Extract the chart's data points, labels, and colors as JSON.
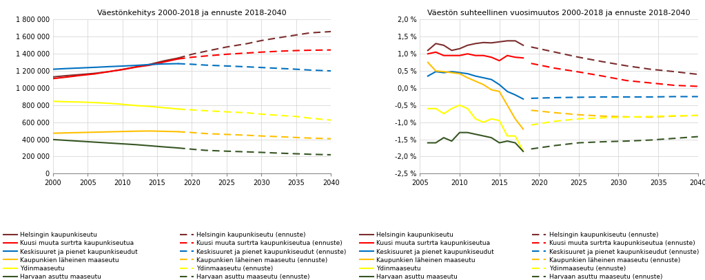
{
  "title1": "Väestönkehitys 2000-2018 ja ennuste 2018-2040",
  "title2": "Väestön suhteellinen vuosimuutos 2000-2018 ja ennuste 2018-2040",
  "colors": {
    "helsinki": "#7B2D2D",
    "kuusi": "#FF0000",
    "keski": "#0070C0",
    "kaupunkien": "#FFC000",
    "ydin": "#FFFF00",
    "harvaan": "#375623"
  },
  "legend_labels": [
    "Helsingin kaupunkiseutu",
    "Kuusi muuta surtrta kaupunkiseutua",
    "Keskisuuret ja pienet kaupunkiseudut",
    "Kaupunkien läheinen maaseutu",
    "Ydinmaaseutu",
    "Harvaan asuttu maaseutu"
  ],
  "legend_labels_ennuste": [
    "Helsingin kaupunkiseutu (ennuste)",
    "Kuusi muuta surtrta kaupunkiseutua (ennuste)",
    "Keskisuuret ja pienet kaupunkiseudut (ennuste)",
    "Kaupunkien läheinen maaseutu (ennuste)",
    "Ydinmaaseutu (ennuste)",
    "Harvaan asuttu maaseutu (ennuste)"
  ],
  "chart1": {
    "xlim": [
      2000,
      2040
    ],
    "ylim": [
      0,
      1800000
    ],
    "yticks": [
      0,
      200000,
      400000,
      600000,
      800000,
      1000000,
      1200000,
      1400000,
      1600000,
      1800000
    ],
    "xticks": [
      2000,
      2005,
      2010,
      2015,
      2020,
      2025,
      2030,
      2035,
      2040
    ],
    "series": {
      "helsinki_hist": {
        "x": [
          2000,
          2002,
          2004,
          2006,
          2008,
          2010,
          2012,
          2014,
          2016,
          2018
        ],
        "y": [
          1130000,
          1145000,
          1158000,
          1172000,
          1190000,
          1218000,
          1248000,
          1278000,
          1318000,
          1350000
        ]
      },
      "helsinki_fore": {
        "x": [
          2018,
          2020,
          2022,
          2025,
          2028,
          2030,
          2033,
          2035,
          2037,
          2040
        ],
        "y": [
          1350000,
          1395000,
          1430000,
          1480000,
          1520000,
          1555000,
          1595000,
          1620000,
          1645000,
          1660000
        ]
      },
      "kuusi_hist": {
        "x": [
          2000,
          2002,
          2004,
          2006,
          2008,
          2010,
          2012,
          2014,
          2016,
          2018
        ],
        "y": [
          1110000,
          1128000,
          1148000,
          1165000,
          1192000,
          1215000,
          1245000,
          1268000,
          1305000,
          1340000
        ]
      },
      "kuusi_fore": {
        "x": [
          2018,
          2020,
          2022,
          2025,
          2028,
          2030,
          2033,
          2035,
          2037,
          2040
        ],
        "y": [
          1340000,
          1360000,
          1375000,
          1395000,
          1410000,
          1420000,
          1432000,
          1438000,
          1442000,
          1445000
        ]
      },
      "keski_hist": {
        "x": [
          2000,
          2002,
          2004,
          2006,
          2008,
          2010,
          2012,
          2014,
          2016,
          2018
        ],
        "y": [
          1220000,
          1228000,
          1235000,
          1242000,
          1250000,
          1257000,
          1265000,
          1275000,
          1282000,
          1285000
        ]
      },
      "keski_fore": {
        "x": [
          2018,
          2020,
          2022,
          2025,
          2028,
          2030,
          2033,
          2035,
          2037,
          2040
        ],
        "y": [
          1285000,
          1278000,
          1268000,
          1258000,
          1248000,
          1240000,
          1228000,
          1220000,
          1210000,
          1200000
        ]
      },
      "kaupunkien_hist": {
        "x": [
          2000,
          2002,
          2004,
          2006,
          2008,
          2010,
          2012,
          2014,
          2016,
          2018
        ],
        "y": [
          472000,
          476000,
          480000,
          484000,
          488000,
          492000,
          496000,
          498000,
          494000,
          490000
        ]
      },
      "kaupunkien_fore": {
        "x": [
          2018,
          2020,
          2022,
          2025,
          2028,
          2030,
          2033,
          2035,
          2037,
          2040
        ],
        "y": [
          490000,
          480000,
          468000,
          458000,
          448000,
          440000,
          430000,
          422000,
          415000,
          408000
        ]
      },
      "ydin_hist": {
        "x": [
          2000,
          2002,
          2004,
          2006,
          2008,
          2010,
          2012,
          2014,
          2016,
          2018
        ],
        "y": [
          845000,
          840000,
          836000,
          830000,
          822000,
          810000,
          795000,
          785000,
          770000,
          755000
        ]
      },
      "ydin_fore": {
        "x": [
          2018,
          2020,
          2022,
          2025,
          2028,
          2030,
          2033,
          2035,
          2037,
          2040
        ],
        "y": [
          755000,
          745000,
          735000,
          722000,
          710000,
          695000,
          678000,
          668000,
          648000,
          625000
        ]
      },
      "harvaan_hist": {
        "x": [
          2000,
          2002,
          2004,
          2006,
          2008,
          2010,
          2012,
          2014,
          2016,
          2018
        ],
        "y": [
          398000,
          388000,
          378000,
          368000,
          358000,
          348000,
          338000,
          325000,
          312000,
          300000
        ]
      },
      "harvaan_fore": {
        "x": [
          2018,
          2020,
          2022,
          2025,
          2028,
          2030,
          2033,
          2035,
          2037,
          2040
        ],
        "y": [
          300000,
          285000,
          272000,
          262000,
          254000,
          248000,
          238000,
          232000,
          226000,
          220000
        ]
      }
    }
  },
  "chart2": {
    "xlim": [
      2005,
      2040
    ],
    "ylim": [
      -0.025,
      0.02
    ],
    "yticks": [
      -0.025,
      -0.02,
      -0.015,
      -0.01,
      -0.005,
      0.0,
      0.005,
      0.01,
      0.015,
      0.02
    ],
    "xticks": [
      2005,
      2010,
      2015,
      2020,
      2025,
      2030,
      2035,
      2040
    ],
    "series": {
      "helsinki_hist": {
        "x": [
          2006,
          2007,
          2008,
          2009,
          2010,
          2011,
          2012,
          2013,
          2014,
          2015,
          2016,
          2017,
          2018
        ],
        "y": [
          0.011,
          0.013,
          0.0125,
          0.011,
          0.0115,
          0.0125,
          0.013,
          0.0133,
          0.0132,
          0.0135,
          0.0138,
          0.0138,
          0.0125
        ]
      },
      "helsinki_fore": {
        "x": [
          2019,
          2022,
          2025,
          2028,
          2031,
          2034,
          2037,
          2040
        ],
        "y": [
          0.012,
          0.0105,
          0.009,
          0.0077,
          0.0065,
          0.0055,
          0.0048,
          0.004
        ]
      },
      "kuusi_hist": {
        "x": [
          2006,
          2007,
          2008,
          2009,
          2010,
          2011,
          2012,
          2013,
          2014,
          2015,
          2016,
          2017,
          2018
        ],
        "y": [
          0.01,
          0.0105,
          0.0095,
          0.0095,
          0.0095,
          0.01,
          0.0095,
          0.0095,
          0.009,
          0.008,
          0.0095,
          0.009,
          0.0088
        ]
      },
      "kuusi_fore": {
        "x": [
          2019,
          2022,
          2025,
          2028,
          2031,
          2034,
          2037,
          2040
        ],
        "y": [
          0.0072,
          0.0058,
          0.0047,
          0.0035,
          0.0022,
          0.0015,
          0.0008,
          0.0005
        ]
      },
      "keski_hist": {
        "x": [
          2006,
          2007,
          2008,
          2009,
          2010,
          2011,
          2012,
          2013,
          2014,
          2015,
          2016,
          2017,
          2018
        ],
        "y": [
          0.0035,
          0.0048,
          0.0045,
          0.0048,
          0.0045,
          0.0042,
          0.0035,
          0.003,
          0.0025,
          0.001,
          -0.001,
          -0.002,
          -0.0032
        ]
      },
      "keski_fore": {
        "x": [
          2019,
          2022,
          2025,
          2028,
          2031,
          2034,
          2037,
          2040
        ],
        "y": [
          -0.003,
          -0.0028,
          -0.0027,
          -0.0026,
          -0.0026,
          -0.0026,
          -0.0025,
          -0.0025
        ]
      },
      "kaupunkien_hist": {
        "x": [
          2006,
          2007,
          2008,
          2009,
          2010,
          2011,
          2012,
          2013,
          2014,
          2015,
          2016,
          2017,
          2018
        ],
        "y": [
          0.0075,
          0.005,
          0.0048,
          0.0045,
          0.0042,
          0.003,
          0.002,
          0.001,
          -0.0005,
          -0.001,
          -0.005,
          -0.009,
          -0.012
        ]
      },
      "kaupunkien_fore": {
        "x": [
          2019,
          2022,
          2025,
          2028,
          2031,
          2034,
          2037,
          2040
        ],
        "y": [
          -0.0065,
          -0.0072,
          -0.0078,
          -0.0082,
          -0.0084,
          -0.0085,
          -0.0082,
          -0.008
        ]
      },
      "ydin_hist": {
        "x": [
          2006,
          2007,
          2008,
          2009,
          2010,
          2011,
          2012,
          2013,
          2014,
          2015,
          2016,
          2017,
          2018
        ],
        "y": [
          -0.006,
          -0.006,
          -0.0075,
          -0.006,
          -0.005,
          -0.006,
          -0.009,
          -0.01,
          -0.009,
          -0.0095,
          -0.014,
          -0.014,
          -0.0185
        ]
      },
      "ydin_fore": {
        "x": [
          2019,
          2022,
          2025,
          2028,
          2031,
          2034,
          2037,
          2040
        ],
        "y": [
          -0.0108,
          -0.0097,
          -0.009,
          -0.0087,
          -0.0085,
          -0.0083,
          -0.0081,
          -0.008
        ]
      },
      "harvaan_hist": {
        "x": [
          2006,
          2007,
          2008,
          2009,
          2010,
          2011,
          2012,
          2013,
          2014,
          2015,
          2016,
          2017,
          2018
        ],
        "y": [
          -0.016,
          -0.016,
          -0.0145,
          -0.0155,
          -0.013,
          -0.013,
          -0.0135,
          -0.014,
          -0.0145,
          -0.016,
          -0.0155,
          -0.016,
          -0.0185
        ]
      },
      "harvaan_fore": {
        "x": [
          2019,
          2022,
          2025,
          2028,
          2031,
          2034,
          2037,
          2040
        ],
        "y": [
          -0.0178,
          -0.0168,
          -0.016,
          -0.0157,
          -0.0155,
          -0.0152,
          -0.0147,
          -0.0142
        ]
      }
    }
  }
}
